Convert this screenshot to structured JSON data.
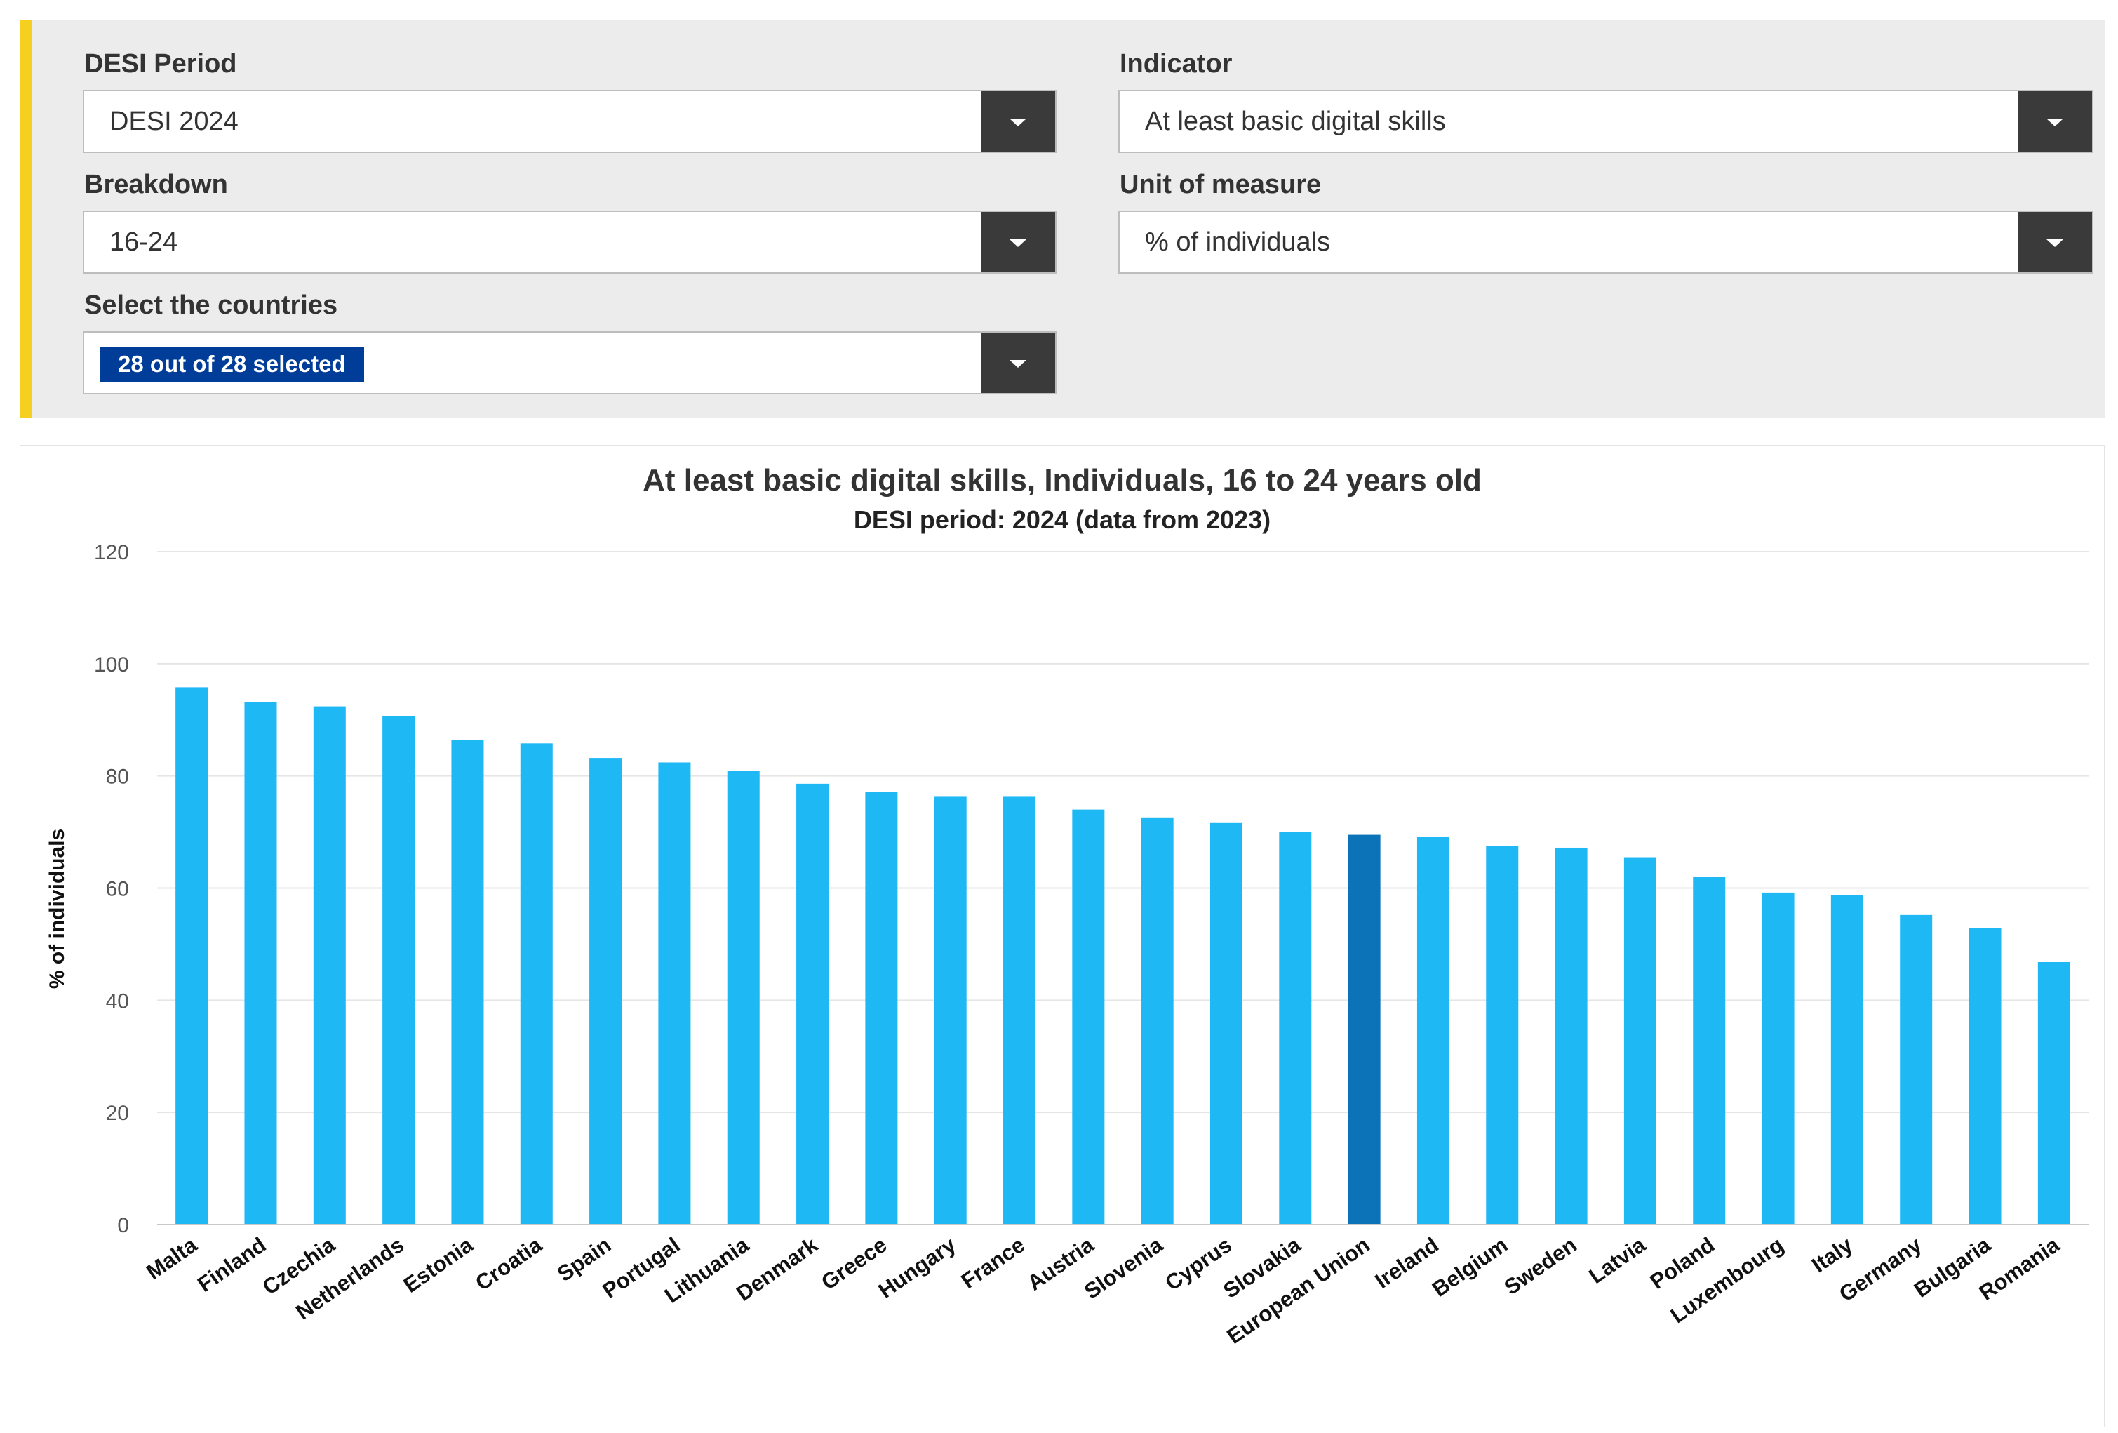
{
  "filters": {
    "desi_period": {
      "label": "DESI Period",
      "value": "DESI 2024"
    },
    "indicator": {
      "label": "Indicator",
      "value": "At least basic digital skills"
    },
    "breakdown": {
      "label": "Breakdown",
      "value": "16-24"
    },
    "unit": {
      "label": "Unit of measure",
      "value": "% of individuals"
    },
    "countries": {
      "label": "Select the countries",
      "value": "28 out of 28 selected"
    }
  },
  "colors": {
    "bar": "#1eb8f5",
    "highlight": "#0c73b8",
    "accent_stripe": "#f5d020",
    "badge": "#003d99"
  },
  "chart_data": {
    "type": "bar",
    "title": "At least basic digital skills, Individuals, 16 to 24 years old",
    "subtitle": "DESI period: 2024 (data from 2023)",
    "ylabel": "% of individuals",
    "xlabel": "",
    "ylim": [
      0,
      120
    ],
    "yticks": [
      0,
      20,
      40,
      60,
      80,
      100,
      120
    ],
    "grid": true,
    "highlighted_category": "European Union",
    "categories": [
      "Malta",
      "Finland",
      "Czechia",
      "Netherlands",
      "Estonia",
      "Croatia",
      "Spain",
      "Portugal",
      "Lithuania",
      "Denmark",
      "Greece",
      "Hungary",
      "France",
      "Austria",
      "Slovenia",
      "Cyprus",
      "Slovakia",
      "European Union",
      "Ireland",
      "Belgium",
      "Sweden",
      "Latvia",
      "Poland",
      "Luxembourg",
      "Italy",
      "Germany",
      "Bulgaria",
      "Romania"
    ],
    "values": [
      95.8,
      93.2,
      92.4,
      90.6,
      86.4,
      85.8,
      83.2,
      82.4,
      80.9,
      78.6,
      77.2,
      76.4,
      76.4,
      74.0,
      72.6,
      71.6,
      70.0,
      69.5,
      69.2,
      67.5,
      67.2,
      65.5,
      62.0,
      59.2,
      58.7,
      55.2,
      52.9,
      46.8
    ]
  }
}
